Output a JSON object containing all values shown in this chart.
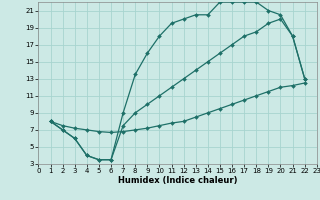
{
  "xlabel": "Humidex (Indice chaleur)",
  "xlim": [
    0,
    23
  ],
  "ylim": [
    3,
    22
  ],
  "xtick_vals": [
    0,
    1,
    2,
    3,
    4,
    5,
    6,
    7,
    8,
    9,
    10,
    11,
    12,
    13,
    14,
    15,
    16,
    17,
    18,
    19,
    20,
    21,
    22,
    23
  ],
  "ytick_vals": [
    3,
    5,
    7,
    9,
    11,
    13,
    15,
    17,
    19,
    21
  ],
  "bg_color": "#cce9e5",
  "grid_color": "#a8d4cf",
  "line_color": "#1e7068",
  "curve1_x": [
    1,
    2,
    3,
    4,
    5,
    6,
    7,
    8,
    9,
    10,
    11,
    12,
    13,
    14,
    15,
    16,
    17,
    18,
    19,
    20,
    21,
    22
  ],
  "curve1_y": [
    8,
    7,
    6,
    4,
    3.5,
    3.5,
    9,
    13.5,
    16,
    18,
    19.5,
    20,
    20.5,
    20.5,
    22,
    22,
    22,
    22,
    21,
    20.5,
    18,
    13
  ],
  "curve2_x": [
    1,
    2,
    3,
    4,
    5,
    6,
    7,
    8,
    9,
    10,
    11,
    12,
    13,
    14,
    15,
    16,
    17,
    18,
    19,
    20,
    21,
    22
  ],
  "curve2_y": [
    8,
    7,
    6,
    4,
    3.5,
    3.5,
    7.5,
    9,
    10,
    11,
    12,
    13,
    14,
    15,
    16,
    17,
    18,
    18.5,
    19.5,
    20,
    18,
    13
  ],
  "curve3_x": [
    1,
    2,
    3,
    4,
    5,
    6,
    7,
    8,
    9,
    10,
    11,
    12,
    13,
    14,
    15,
    16,
    17,
    18,
    19,
    20,
    21,
    22
  ],
  "curve3_y": [
    8,
    7.5,
    7.2,
    7,
    6.8,
    6.7,
    6.8,
    7,
    7.2,
    7.5,
    7.8,
    8,
    8.5,
    9,
    9.5,
    10,
    10.5,
    11,
    11.5,
    12,
    12.2,
    12.5
  ]
}
